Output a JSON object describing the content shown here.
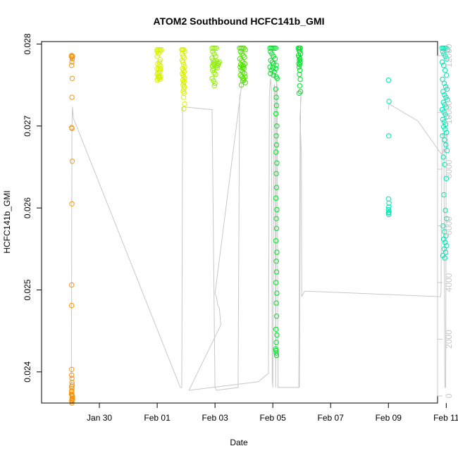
{
  "chart_data": {
    "type": "scatter",
    "title": "ATOM2 Southbound HCFC141b_GMI",
    "xlabel": "Date",
    "ylabel": "HCFC141b_GMI",
    "xlim": [
      -2.0,
      11.7
    ],
    "ylim": [
      0.02362,
      0.02803
    ],
    "y2lim": [
      -250,
      12500
    ],
    "x_ticks": [
      {
        "value": 0,
        "label": "Jan 30"
      },
      {
        "value": 2,
        "label": "Feb 01"
      },
      {
        "value": 4,
        "label": "Feb 03"
      },
      {
        "value": 6,
        "label": "Feb 05"
      },
      {
        "value": 8,
        "label": "Feb 07"
      },
      {
        "value": 10,
        "label": "Feb 09"
      },
      {
        "value": 12,
        "label": "Feb 11"
      }
    ],
    "y_ticks": [
      "0.024",
      "0.025",
      "0.026",
      "0.027",
      "0.028"
    ],
    "y2_ticks": [
      "0",
      "2000",
      "4000",
      "6000",
      "8000",
      "10000",
      "12000"
    ],
    "grid": false,
    "series": [
      {
        "color": "#f5960f",
        "x": [
          -0.97,
          -0.95,
          -0.96,
          -0.93,
          -0.94,
          -0.95,
          -0.96,
          -0.94,
          -0.95,
          -0.96,
          -0.95,
          -0.94,
          -0.95,
          -0.96,
          -0.96,
          -0.96,
          -0.96,
          -0.95,
          -0.95,
          -0.96,
          -0.96,
          -0.96,
          -0.96,
          -0.95,
          -0.94,
          -0.95,
          -0.93,
          -0.93,
          -0.96,
          -0.95,
          -0.94,
          -0.97,
          -0.95,
          -0.93,
          -0.95,
          -0.94,
          -0.95
        ],
        "y": [
          0.02785,
          0.02784,
          0.02786,
          0.02785,
          0.02782,
          0.02778,
          0.02774,
          0.02758,
          0.02735,
          0.02698,
          0.02697,
          0.02657,
          0.02605,
          0.02506,
          0.02481,
          0.02403,
          0.02396,
          0.02392,
          0.02387,
          0.02382,
          0.02377,
          0.02376,
          0.02373,
          0.02372,
          0.02371,
          0.02368,
          0.02367,
          0.02366,
          0.02365,
          0.02364,
          0.02368,
          0.02373,
          0.0238,
          0.0237,
          0.02377,
          0.02384,
          0.02362
        ]
      },
      {
        "color": "#d8f000",
        "x": [
          2.0,
          2.05,
          2.1,
          2.15,
          2.0,
          2.1,
          2.05,
          2.0,
          2.1,
          2.08,
          2.02,
          2.12,
          2.0,
          2.05,
          2.1,
          2.08,
          2.0,
          2.04,
          2.12,
          2.06,
          2.02,
          2.1,
          2.0,
          2.08,
          2.06,
          2.03,
          2.11,
          2.07,
          2.85,
          2.88,
          2.92,
          2.95,
          2.87,
          2.9,
          2.93,
          2.86,
          2.89,
          2.92,
          2.95,
          2.88,
          2.91,
          2.94,
          2.87,
          2.9,
          2.92,
          2.95,
          2.89,
          2.93,
          2.91,
          2.9,
          2.94,
          2.92,
          2.9,
          2.93,
          2.91,
          2.95,
          2.92
        ],
        "y": [
          0.02793,
          0.02793,
          0.02793,
          0.02793,
          0.02791,
          0.02791,
          0.02788,
          0.02785,
          0.02781,
          0.02778,
          0.02776,
          0.02773,
          0.0277,
          0.02769,
          0.02767,
          0.02765,
          0.02763,
          0.02761,
          0.0276,
          0.02759,
          0.02758,
          0.02757,
          0.02756,
          0.02759,
          0.02761,
          0.02765,
          0.0277,
          0.02775,
          0.02793,
          0.02793,
          0.02793,
          0.02791,
          0.02788,
          0.02785,
          0.02783,
          0.0278,
          0.02778,
          0.02775,
          0.02772,
          0.0277,
          0.02768,
          0.02766,
          0.02764,
          0.02762,
          0.0276,
          0.02758,
          0.02756,
          0.02754,
          0.02752,
          0.0275,
          0.02748,
          0.02745,
          0.02742,
          0.0274,
          0.02735,
          0.02727,
          0.02721
        ]
      },
      {
        "color": "#8ff000",
        "x": [
          3.9,
          3.95,
          4.0,
          4.05,
          3.92,
          3.97,
          4.02,
          3.9,
          3.94,
          3.98,
          4.05,
          4.1,
          3.93,
          3.96,
          4.0,
          3.91,
          4.03,
          3.95,
          4.08,
          3.92,
          4.15,
          3.97,
          4.02,
          4.1,
          3.9,
          3.95,
          4.0,
          3.98,
          4.12
        ],
        "y": [
          0.02795,
          0.02795,
          0.02795,
          0.02795,
          0.02791,
          0.02788,
          0.02785,
          0.02783,
          0.0278,
          0.02778,
          0.02779,
          0.02777,
          0.02776,
          0.02775,
          0.02774,
          0.02773,
          0.02772,
          0.0277,
          0.02771,
          0.02768,
          0.02778,
          0.02765,
          0.02763,
          0.02774,
          0.02758,
          0.02755,
          0.02752,
          0.02749,
          0.02776
        ]
      },
      {
        "color": "#50e000",
        "x": [
          4.85,
          4.9,
          4.95,
          5.0,
          5.05,
          4.88,
          4.93,
          4.98,
          5.02,
          4.86,
          4.92,
          4.97,
          5.03,
          4.89,
          4.94,
          4.99,
          4.87,
          4.95,
          5.0,
          4.9,
          4.96,
          5.02,
          4.88,
          4.93,
          4.98,
          5.0,
          5.05,
          4.91,
          4.96,
          5.04
        ],
        "y": [
          0.02795,
          0.02795,
          0.02795,
          0.02795,
          0.02793,
          0.02791,
          0.02788,
          0.02786,
          0.02784,
          0.02782,
          0.0278,
          0.02778,
          0.02776,
          0.02775,
          0.02774,
          0.02773,
          0.02772,
          0.02771,
          0.0277,
          0.02768,
          0.02766,
          0.02764,
          0.02762,
          0.0276,
          0.02758,
          0.02756,
          0.02753,
          0.0275,
          0.02755,
          0.0276
        ]
      },
      {
        "color": "#00e028",
        "x": [
          5.9,
          5.95,
          6.0,
          6.05,
          6.1,
          5.92,
          5.97,
          6.02,
          6.08,
          5.93,
          5.98,
          6.03,
          6.12,
          5.9,
          6.0,
          6.1,
          5.95,
          6.05,
          5.92,
          6.02,
          6.12,
          6.15,
          6.1,
          6.12,
          6.13,
          6.11,
          6.14,
          6.12,
          6.13,
          6.11,
          6.14,
          6.12,
          6.13,
          6.11,
          6.14,
          6.12,
          6.13,
          6.11,
          6.14,
          6.12,
          6.13,
          6.11,
          6.14,
          6.12,
          6.13,
          6.11,
          6.14,
          6.12,
          6.1,
          6.13,
          6.12,
          6.11,
          6.88,
          6.92,
          6.95,
          6.9,
          6.93,
          6.96,
          6.89,
          6.91,
          6.94,
          6.92,
          6.95,
          6.9,
          6.93,
          6.91,
          6.94,
          6.92,
          6.95,
          6.93,
          6.96,
          6.91
        ],
        "y": [
          0.02795,
          0.02795,
          0.02795,
          0.02795,
          0.02795,
          0.02791,
          0.02788,
          0.02785,
          0.02782,
          0.0278,
          0.02778,
          0.02776,
          0.02774,
          0.02772,
          0.02771,
          0.0277,
          0.02768,
          0.02766,
          0.02764,
          0.02762,
          0.0276,
          0.02758,
          0.02745,
          0.02735,
          0.02725,
          0.02715,
          0.027,
          0.02688,
          0.02677,
          0.02668,
          0.02655,
          0.02642,
          0.02625,
          0.02612,
          0.02598,
          0.02587,
          0.02575,
          0.0256,
          0.02546,
          0.02535,
          0.02522,
          0.02509,
          0.02496,
          0.02484,
          0.02468,
          0.02452,
          0.02445,
          0.02436,
          0.02428,
          0.0242,
          0.02423,
          0.02426,
          0.02795,
          0.02795,
          0.02795,
          0.02793,
          0.02791,
          0.02788,
          0.02786,
          0.02784,
          0.02782,
          0.0278,
          0.02778,
          0.02776,
          0.02775,
          0.02772,
          0.02768,
          0.02763,
          0.02757,
          0.02749,
          0.02742,
          0.0274
        ]
      },
      {
        "color": "#00e5b0",
        "x": [
          10.0,
          10.02,
          10.01,
          10.0,
          10.02,
          10.01,
          10.0,
          10.02,
          10.0,
          10.01,
          11.85,
          11.9,
          11.95,
          12.0,
          12.05,
          11.88,
          11.92,
          11.97,
          12.02,
          11.86,
          11.91,
          11.96,
          12.01,
          11.87,
          11.93,
          11.98,
          12.03,
          11.89,
          11.94,
          11.99,
          12.04,
          11.9,
          11.95,
          12.0,
          11.86,
          11.92,
          11.97,
          12.02,
          11.88,
          11.93,
          11.98,
          11.91,
          11.96,
          12.01,
          11.87,
          11.94,
          11.99,
          12.03,
          11.9,
          11.95,
          12.0,
          11.92,
          11.97,
          12.02,
          11.89,
          11.94,
          11.99,
          11.91,
          11.96,
          12.01,
          11.93,
          11.98,
          11.88,
          11.95
        ],
        "y": [
          0.02756,
          0.0273,
          0.02688,
          0.02611,
          0.02606,
          0.02601,
          0.02598,
          0.02595,
          0.02594,
          0.02592,
          0.02795,
          0.02795,
          0.02795,
          0.02795,
          0.02793,
          0.02791,
          0.02788,
          0.02785,
          0.02782,
          0.02778,
          0.02774,
          0.02768,
          0.02762,
          0.02757,
          0.02752,
          0.02748,
          0.02745,
          0.02742,
          0.02738,
          0.02735,
          0.02732,
          0.02729,
          0.02726,
          0.02723,
          0.0272,
          0.02717,
          0.02714,
          0.02711,
          0.02708,
          0.02705,
          0.02702,
          0.02699,
          0.02696,
          0.02692,
          0.02688,
          0.02683,
          0.02677,
          0.0267,
          0.02662,
          0.02653,
          0.02636,
          0.02616,
          0.02597,
          0.02587,
          0.02578,
          0.02571,
          0.02566,
          0.02562,
          0.02558,
          0.02554,
          0.0255,
          0.02546,
          0.02542,
          0.02539
        ]
      }
    ],
    "altitude_line": {
      "color": "#c8c8c8",
      "x": [
        -1.0,
        -0.97,
        -0.95,
        -0.93,
        -0.9,
        2.8,
        2.85,
        2.88,
        3.9,
        4.0,
        4.05,
        4.8,
        4.85,
        4.9,
        4.95,
        4.0,
        4.05,
        4.1,
        4.15,
        4.2,
        3.1,
        3.12,
        5.5,
        5.85,
        5.88,
        5.9,
        5.92,
        5.95,
        5.98,
        6.0,
        6.05,
        6.08,
        6.1,
        6.13,
        6.15,
        6.18,
        6.2,
        6.9,
        6.95,
        6.92,
        6.96,
        6.98,
        6.94,
        6.99,
        7.0,
        7.05,
        7.1,
        11.8,
        11.82,
        11.85,
        11.88,
        11.9,
        11.92,
        11.95,
        11.98,
        12.0,
        12.02,
        12.05,
        11.99,
        11.95,
        11.94,
        11.9,
        11.88,
        11.85,
        11.02,
        10.02,
        10.01,
        10.0
      ],
      "y": [
        400,
        500,
        9500,
        10200,
        9800,
        300,
        300,
        10200,
        10100,
        300,
        200,
        300,
        10500,
        10800,
        11200,
        3600,
        3500,
        3200,
        3100,
        2500,
        200,
        200,
        500,
        800,
        10500,
        11000,
        11200,
        10800,
        600,
        300,
        11000,
        10800,
        300,
        11200,
        10800,
        300,
        300,
        300,
        10000,
        300,
        10500,
        10600,
        9800,
        8500,
        3500,
        3600,
        3700,
        3500,
        3650,
        9000,
        9200,
        9300,
        9100,
        300,
        300,
        9200,
        9300,
        9000,
        8600,
        8600,
        8700,
        8700,
        8600,
        8500,
        9700,
        10300,
        10200,
        10100
      ]
    }
  }
}
